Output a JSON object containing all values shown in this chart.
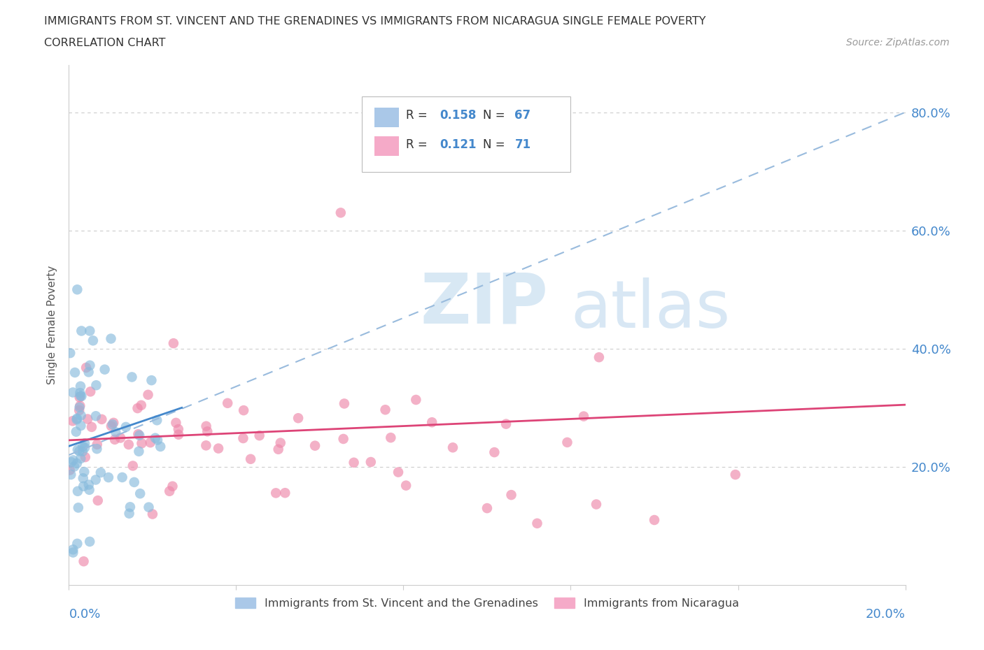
{
  "title_line1": "IMMIGRANTS FROM ST. VINCENT AND THE GRENADINES VS IMMIGRANTS FROM NICARAGUA SINGLE FEMALE POVERTY",
  "title_line2": "CORRELATION CHART",
  "source_text": "Source: ZipAtlas.com",
  "ylabel": "Single Female Poverty",
  "x_lim": [
    0.0,
    0.2
  ],
  "y_lim": [
    0.0,
    0.88
  ],
  "watermark_zip": "ZIP",
  "watermark_atlas": "atlas",
  "blue_R": "0.158",
  "blue_N": "67",
  "pink_R": "0.121",
  "pink_N": "71",
  "blue_legend_color": "#aac8e8",
  "pink_legend_color": "#f5aac8",
  "blue_scatter_color": "#88bbdd",
  "pink_scatter_color": "#ee88aa",
  "trend_blue_color": "#4488cc",
  "trend_pink_color": "#dd4477",
  "trend_blue_dashed_color": "#99bbdd",
  "grid_color": "#cccccc",
  "spine_color": "#cccccc",
  "tick_label_color": "#4488cc",
  "title_color": "#333333",
  "source_color": "#999999",
  "ylabel_color": "#555555"
}
